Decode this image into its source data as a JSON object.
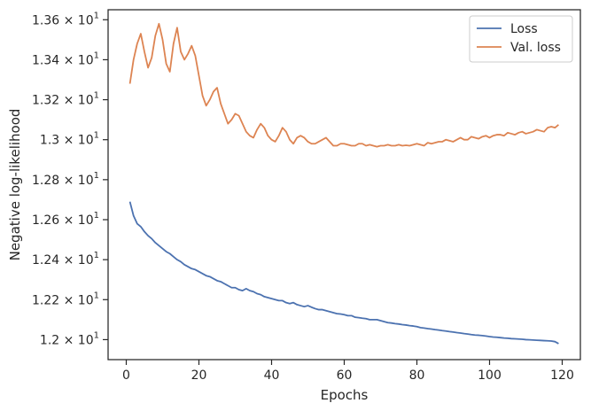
{
  "chart_data": {
    "type": "line",
    "title": "",
    "xlabel": "Epochs",
    "ylabel": "Negative log-likelihood",
    "xlim": [
      -5,
      125
    ],
    "ylim": [
      11.9,
      13.65
    ],
    "x_ticks": [
      0,
      20,
      40,
      60,
      80,
      100,
      120
    ],
    "x_tick_labels": [
      "0",
      "20",
      "40",
      "60",
      "80",
      "100",
      "120"
    ],
    "y_ticks": [
      12.0,
      12.2,
      12.4,
      12.6,
      12.8,
      13.0,
      13.2,
      13.4,
      13.6
    ],
    "y_tick_labels": [
      {
        "mantissa": "1.2",
        "times": "×",
        "base": "10",
        "exp": "1"
      },
      {
        "mantissa": "1.22",
        "times": "×",
        "base": "10",
        "exp": "1"
      },
      {
        "mantissa": "1.24",
        "times": "×",
        "base": "10",
        "exp": "1"
      },
      {
        "mantissa": "1.26",
        "times": "×",
        "base": "10",
        "exp": "1"
      },
      {
        "mantissa": "1.28",
        "times": "×",
        "base": "10",
        "exp": "1"
      },
      {
        "mantissa": "1.3",
        "times": "×",
        "base": "10",
        "exp": "1"
      },
      {
        "mantissa": "1.32",
        "times": "×",
        "base": "10",
        "exp": "1"
      },
      {
        "mantissa": "1.34",
        "times": "×",
        "base": "10",
        "exp": "1"
      },
      {
        "mantissa": "1.36",
        "times": "×",
        "base": "10",
        "exp": "1"
      }
    ],
    "grid": false,
    "legend_position": "top-right",
    "series": [
      {
        "name": "Loss",
        "color": "#4c72b0",
        "x": [
          1,
          2,
          3,
          4,
          5,
          6,
          7,
          8,
          9,
          10,
          11,
          12,
          13,
          14,
          15,
          16,
          17,
          18,
          19,
          20,
          21,
          22,
          23,
          24,
          25,
          26,
          27,
          28,
          29,
          30,
          31,
          32,
          33,
          34,
          35,
          36,
          37,
          38,
          39,
          40,
          41,
          42,
          43,
          44,
          45,
          46,
          47,
          48,
          49,
          50,
          51,
          52,
          53,
          54,
          55,
          56,
          57,
          58,
          59,
          60,
          61,
          62,
          63,
          64,
          65,
          66,
          67,
          68,
          69,
          70,
          71,
          72,
          73,
          74,
          75,
          76,
          77,
          78,
          79,
          80,
          81,
          82,
          83,
          84,
          85,
          86,
          87,
          88,
          89,
          90,
          91,
          92,
          93,
          94,
          95,
          96,
          97,
          98,
          99,
          100,
          101,
          102,
          103,
          104,
          105,
          106,
          107,
          108,
          109,
          110,
          111,
          112,
          113,
          114,
          115,
          116,
          117,
          118,
          119
        ],
        "values": [
          12.69,
          12.62,
          12.58,
          12.565,
          12.54,
          12.52,
          12.505,
          12.485,
          12.47,
          12.455,
          12.44,
          12.43,
          12.415,
          12.4,
          12.39,
          12.375,
          12.365,
          12.355,
          12.35,
          12.34,
          12.33,
          12.32,
          12.315,
          12.305,
          12.295,
          12.29,
          12.28,
          12.27,
          12.26,
          12.26,
          12.25,
          12.245,
          12.255,
          12.245,
          12.24,
          12.23,
          12.225,
          12.215,
          12.21,
          12.205,
          12.2,
          12.195,
          12.195,
          12.185,
          12.18,
          12.185,
          12.175,
          12.17,
          12.165,
          12.17,
          12.162,
          12.155,
          12.15,
          12.15,
          12.145,
          12.14,
          12.135,
          12.13,
          12.128,
          12.125,
          12.12,
          12.12,
          12.112,
          12.11,
          12.107,
          12.105,
          12.1,
          12.1,
          12.1,
          12.095,
          12.09,
          12.085,
          12.083,
          12.08,
          12.078,
          12.075,
          12.073,
          12.07,
          12.068,
          12.065,
          12.06,
          12.058,
          12.055,
          12.053,
          12.05,
          12.048,
          12.045,
          12.043,
          12.04,
          12.038,
          12.035,
          12.033,
          12.03,
          12.028,
          12.025,
          12.023,
          12.022,
          12.02,
          12.018,
          12.015,
          12.013,
          12.012,
          12.01,
          12.008,
          12.007,
          12.005,
          12.004,
          12.003,
          12.002,
          12.0,
          11.999,
          11.998,
          11.997,
          11.996,
          11.995,
          11.994,
          11.993,
          11.99,
          11.98
        ]
      },
      {
        "name": "Val. loss",
        "color": "#dd8452",
        "x": [
          1,
          2,
          3,
          4,
          5,
          6,
          7,
          8,
          9,
          10,
          11,
          12,
          13,
          14,
          15,
          16,
          17,
          18,
          19,
          20,
          21,
          22,
          23,
          24,
          25,
          26,
          27,
          28,
          29,
          30,
          31,
          32,
          33,
          34,
          35,
          36,
          37,
          38,
          39,
          40,
          41,
          42,
          43,
          44,
          45,
          46,
          47,
          48,
          49,
          50,
          51,
          52,
          53,
          54,
          55,
          56,
          57,
          58,
          59,
          60,
          61,
          62,
          63,
          64,
          65,
          66,
          67,
          68,
          69,
          70,
          71,
          72,
          73,
          74,
          75,
          76,
          77,
          78,
          79,
          80,
          81,
          82,
          83,
          84,
          85,
          86,
          87,
          88,
          89,
          90,
          91,
          92,
          93,
          94,
          95,
          96,
          97,
          98,
          99,
          100,
          101,
          102,
          103,
          104,
          105,
          106,
          107,
          108,
          109,
          110,
          111,
          112,
          113,
          114,
          115,
          116,
          117,
          118,
          119
        ],
        "values": [
          13.28,
          13.4,
          13.48,
          13.53,
          13.44,
          13.36,
          13.41,
          13.52,
          13.58,
          13.5,
          13.38,
          13.34,
          13.48,
          13.56,
          13.44,
          13.4,
          13.43,
          13.47,
          13.42,
          13.32,
          13.22,
          13.17,
          13.2,
          13.24,
          13.26,
          13.18,
          13.13,
          13.08,
          13.1,
          13.13,
          13.12,
          13.08,
          13.04,
          13.02,
          13.01,
          13.05,
          13.08,
          13.06,
          13.02,
          13.0,
          12.99,
          13.02,
          13.06,
          13.04,
          13.0,
          12.98,
          13.01,
          13.02,
          13.01,
          12.99,
          12.98,
          12.98,
          12.99,
          13.0,
          13.01,
          12.99,
          12.97,
          12.97,
          12.98,
          12.98,
          12.975,
          12.97,
          12.97,
          12.98,
          12.98,
          12.97,
          12.975,
          12.97,
          12.965,
          12.97,
          12.97,
          12.975,
          12.97,
          12.97,
          12.975,
          12.97,
          12.972,
          12.97,
          12.975,
          12.98,
          12.975,
          12.97,
          12.985,
          12.98,
          12.985,
          12.99,
          12.99,
          13.0,
          12.995,
          12.99,
          13.0,
          13.01,
          13.0,
          13.0,
          13.015,
          13.01,
          13.005,
          13.015,
          13.02,
          13.01,
          13.02,
          13.025,
          13.025,
          13.02,
          13.035,
          13.03,
          13.025,
          13.035,
          13.04,
          13.03,
          13.035,
          13.04,
          13.05,
          13.045,
          13.04,
          13.06,
          13.065,
          13.06,
          13.075
        ]
      }
    ]
  }
}
